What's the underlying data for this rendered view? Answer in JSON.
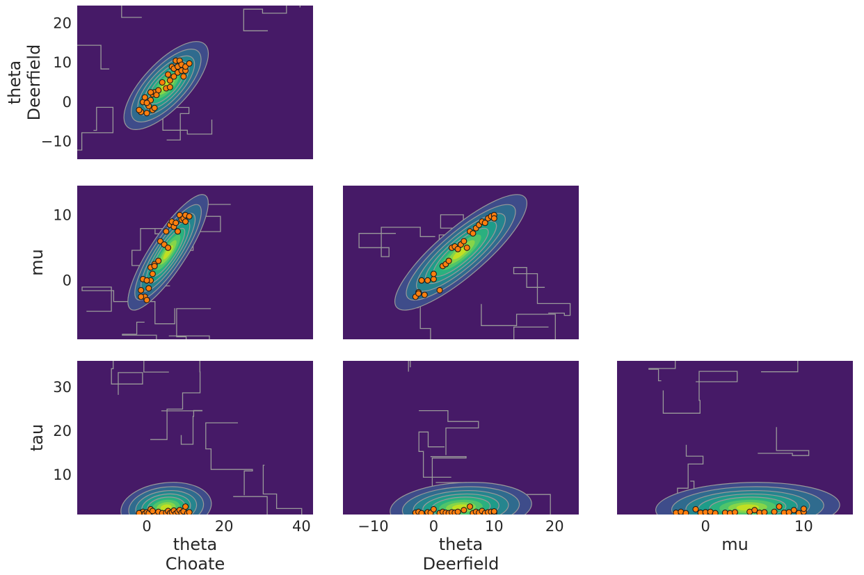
{
  "colors": {
    "background_level": "#461a67",
    "levels": [
      "#461a67",
      "#3e4c8a",
      "#2f6b8e",
      "#25858e",
      "#1e9c89",
      "#2ab07f",
      "#50c46a",
      "#86d549",
      "#c2df23"
    ],
    "contour_line": "#9a9a9a",
    "point_fill": "#ff7f0e",
    "point_edge": "#1a1a1a"
  },
  "chart_data": [
    {
      "type": "scatter",
      "panel": "theta_Deerfield-vs-theta_Choate",
      "xlabel": "",
      "ylabel": "theta\nDeerfield",
      "xlim": [
        -18,
        43
      ],
      "ylim": [
        -14.5,
        24.5
      ],
      "xticks": [],
      "yticks": [
        -10,
        0,
        10,
        20
      ],
      "kde": {
        "cx": 5.0,
        "cy": 4.2,
        "sx": 4.2,
        "sy": 4.3,
        "rho": 0.72
      },
      "points": {
        "x": [
          -1.5,
          -1,
          -0.5,
          0,
          0.5,
          1,
          1.5,
          1.5,
          2,
          3,
          4,
          5,
          5.5,
          6,
          6,
          6.5,
          7,
          7,
          7.5,
          8,
          8,
          8.5,
          9,
          9,
          9.5,
          10,
          10,
          11,
          -2,
          0,
          1,
          2,
          2.5
        ],
        "y": [
          -2.5,
          0,
          1.2,
          -2.8,
          -1,
          0.5,
          2,
          -2,
          2.5,
          3,
          5,
          3.5,
          7,
          3.8,
          5.5,
          9,
          6.5,
          8.5,
          10.5,
          7.5,
          9,
          10.5,
          8,
          9.5,
          6.5,
          8,
          9,
          9.8,
          -2,
          -0.2,
          2.5,
          -1.5,
          1.8
        ]
      }
    },
    {
      "type": "scatter",
      "panel": "mu-vs-theta_Choate",
      "xlabel": "",
      "ylabel": "mu",
      "xlim": [
        -18,
        43
      ],
      "ylim": [
        -9,
        14.5
      ],
      "xticks": [],
      "yticks": [
        0,
        10
      ],
      "kde": {
        "cx": 5.5,
        "cy": 4.3,
        "sx": 4.0,
        "sy": 3.4,
        "rho": 0.85
      },
      "points": {
        "x": [
          -1.5,
          -1,
          -0.5,
          0,
          0.5,
          1,
          1.5,
          2,
          3,
          3.5,
          4.5,
          5,
          5.5,
          6,
          6.5,
          7,
          7.5,
          8,
          8.5,
          9,
          9.5,
          10,
          10,
          11,
          -1.5,
          0,
          1,
          2
        ],
        "y": [
          -1.5,
          0.2,
          -2.5,
          -3,
          -1.2,
          0,
          1,
          2.5,
          3,
          6,
          5.5,
          7.5,
          5,
          8.5,
          9,
          8.2,
          8.8,
          7.5,
          10,
          9.3,
          9.5,
          9,
          10,
          9.8,
          -2.5,
          0,
          2,
          2.2
        ]
      }
    },
    {
      "type": "scatter",
      "panel": "mu-vs-theta_Deerfield",
      "xlabel": "",
      "ylabel": "",
      "xlim": [
        -15,
        24
      ],
      "ylim": [
        -9,
        14.5
      ],
      "xticks": [],
      "yticks": [],
      "kde": {
        "cx": 4.5,
        "cy": 4.3,
        "sx": 4.2,
        "sy": 3.4,
        "rho": 0.85
      },
      "points": {
        "x": [
          -3,
          -2.5,
          -2,
          -1,
          0,
          0,
          1,
          1.5,
          2,
          2.5,
          3,
          3.5,
          4,
          4.5,
          5,
          5.5,
          6,
          6.5,
          7,
          7.5,
          8,
          8.5,
          9,
          9.5,
          10,
          10,
          -2.5,
          -1.5
        ],
        "y": [
          -2.5,
          -1.8,
          0,
          0,
          0.2,
          1,
          -1.5,
          2.2,
          2.5,
          3,
          5,
          5.2,
          4.8,
          5.5,
          6,
          5,
          7.5,
          7.2,
          8,
          8.5,
          9,
          8.8,
          9.5,
          9.8,
          10,
          9.5,
          -2,
          -2.2
        ]
      }
    },
    {
      "type": "scatter",
      "panel": "tau-vs-theta_Choate",
      "xlabel": "theta\nChoate",
      "ylabel": "tau",
      "xlim": [
        -18,
        43
      ],
      "ylim": [
        1,
        36
      ],
      "xticks": [
        0,
        20,
        40
      ],
      "yticks": [
        10,
        20,
        30
      ],
      "kde": {
        "cx": 5.0,
        "cy": 2.6,
        "sx": 4.5,
        "sy": 2.2,
        "rho": 0.15
      },
      "points": {
        "x": [
          -1.5,
          -1,
          -0.5,
          0,
          0.5,
          1,
          2,
          3,
          4,
          5,
          5.5,
          6,
          6.5,
          7,
          7.5,
          8,
          8.5,
          9,
          9.5,
          10,
          10.5,
          11,
          -2,
          1.5
        ],
        "y": [
          1.4,
          1.6,
          1.2,
          1.5,
          1.3,
          2.2,
          1.4,
          1.6,
          1.3,
          1.4,
          1.8,
          1.3,
          1.5,
          1.9,
          1.2,
          1.6,
          2,
          1.4,
          1.7,
          2.8,
          1.3,
          1.5,
          1.3,
          1.8
        ]
      }
    },
    {
      "type": "scatter",
      "panel": "tau-vs-theta_Deerfield",
      "xlabel": "theta\nDeerfield",
      "ylabel": "",
      "xlim": [
        -15,
        24
      ],
      "ylim": [
        1,
        36
      ],
      "xticks": [
        -10,
        0,
        10,
        20
      ],
      "yticks": [],
      "kde": {
        "cx": 4.5,
        "cy": 2.6,
        "sx": 4.5,
        "sy": 2.2,
        "rho": 0.15
      },
      "points": {
        "x": [
          -3,
          -2.5,
          -2,
          -1,
          -0.5,
          0,
          1,
          1.5,
          2,
          2.5,
          3,
          3.5,
          4,
          5,
          6,
          6.5,
          7,
          7.5,
          8,
          8.5,
          9,
          9.5,
          10,
          10
        ],
        "y": [
          1.4,
          1.6,
          1.3,
          1.5,
          1.4,
          2.2,
          1.3,
          1.6,
          1.4,
          1.3,
          1.5,
          1.4,
          1.6,
          2,
          2.8,
          1.3,
          1.6,
          1.4,
          1.8,
          1.3,
          1.5,
          1.6,
          1.4,
          1.7
        ]
      }
    },
    {
      "type": "scatter",
      "panel": "tau-vs-mu",
      "xlabel": "mu",
      "ylabel": "",
      "xlim": [
        -9,
        15
      ],
      "ylim": [
        1,
        36
      ],
      "xticks": [
        0,
        10
      ],
      "yticks": [],
      "kde": {
        "cx": 4.3,
        "cy": 2.6,
        "sx": 3.6,
        "sy": 2.2,
        "rho": 0.1
      },
      "points": {
        "x": [
          -3,
          -2.5,
          -2,
          -1,
          -0.5,
          0,
          0.5,
          1,
          2,
          2.5,
          3,
          4.5,
          5,
          5.5,
          6,
          7,
          7.5,
          8,
          8.5,
          9,
          9.5,
          10,
          10
        ],
        "y": [
          1.4,
          1.6,
          1.3,
          2.2,
          1.4,
          1.5,
          1.6,
          1.3,
          1.4,
          1.3,
          1.5,
          1.6,
          2,
          1.4,
          1.5,
          1.6,
          2.8,
          1.4,
          1.5,
          2,
          1.3,
          1.6,
          2.3
        ]
      }
    }
  ]
}
